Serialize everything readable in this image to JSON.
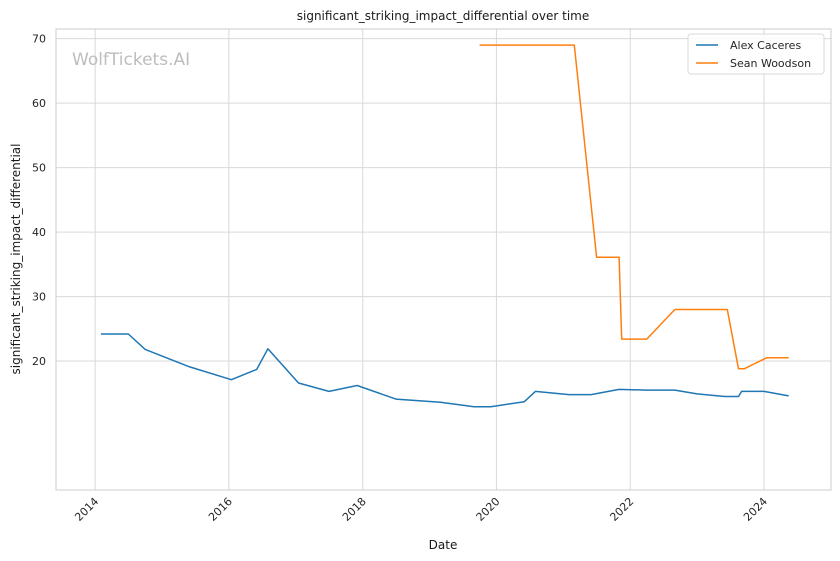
{
  "chart_data": {
    "type": "line",
    "title": "significant_striking_impact_differential over time",
    "xlabel": "Date",
    "ylabel": "significant_striking_impact_differential",
    "watermark": "WolfTickets.AI",
    "xlim": [
      "2013-06-01",
      "2025-01-01"
    ],
    "ylim": [
      0,
      71.5
    ],
    "x_ticks": [
      "2014-01-01",
      "2016-01-01",
      "2018-01-01",
      "2020-01-01",
      "2022-01-01",
      "2024-01-01"
    ],
    "x_tick_labels": [
      "2014",
      "2016",
      "2018",
      "2020",
      "2022",
      "2024"
    ],
    "y_ticks": [
      20,
      30,
      40,
      50,
      60,
      70
    ],
    "grid": true,
    "legend_position": "top-right",
    "series": [
      {
        "name": "Alex Caceres",
        "color": "#1f77b4",
        "points": [
          [
            "2014-02-01",
            24.2
          ],
          [
            "2014-07-01",
            24.2
          ],
          [
            "2014-10-01",
            21.8
          ],
          [
            "2015-06-01",
            19.1
          ],
          [
            "2016-01-15",
            17.1
          ],
          [
            "2016-06-01",
            18.7
          ],
          [
            "2016-08-01",
            21.9
          ],
          [
            "2017-01-15",
            16.6
          ],
          [
            "2017-07-01",
            15.3
          ],
          [
            "2017-12-01",
            16.2
          ],
          [
            "2018-07-01",
            14.1
          ],
          [
            "2019-03-01",
            13.6
          ],
          [
            "2019-09-01",
            12.9
          ],
          [
            "2019-12-01",
            12.9
          ],
          [
            "2020-06-01",
            13.7
          ],
          [
            "2020-08-01",
            15.3
          ],
          [
            "2021-02-01",
            14.8
          ],
          [
            "2021-06-01",
            14.8
          ],
          [
            "2021-11-01",
            15.6
          ],
          [
            "2022-04-01",
            15.5
          ],
          [
            "2022-09-01",
            15.5
          ],
          [
            "2023-01-01",
            14.9
          ],
          [
            "2023-06-01",
            14.5
          ],
          [
            "2023-08-15",
            14.5
          ],
          [
            "2023-09-01",
            15.3
          ],
          [
            "2024-01-01",
            15.3
          ],
          [
            "2024-05-15",
            14.6
          ]
        ]
      },
      {
        "name": "Sean Woodson",
        "color": "#ff7f0e",
        "points": [
          [
            "2019-10-01",
            69.0
          ],
          [
            "2021-03-01",
            69.0
          ],
          [
            "2021-07-01",
            36.1
          ],
          [
            "2021-11-01",
            36.1
          ],
          [
            "2021-11-15",
            23.4
          ],
          [
            "2022-04-01",
            23.4
          ],
          [
            "2022-09-01",
            28.0
          ],
          [
            "2023-06-15",
            28.0
          ],
          [
            "2023-08-15",
            18.8
          ],
          [
            "2023-09-15",
            18.8
          ],
          [
            "2024-01-15",
            20.5
          ],
          [
            "2024-05-15",
            20.5
          ]
        ]
      }
    ]
  }
}
